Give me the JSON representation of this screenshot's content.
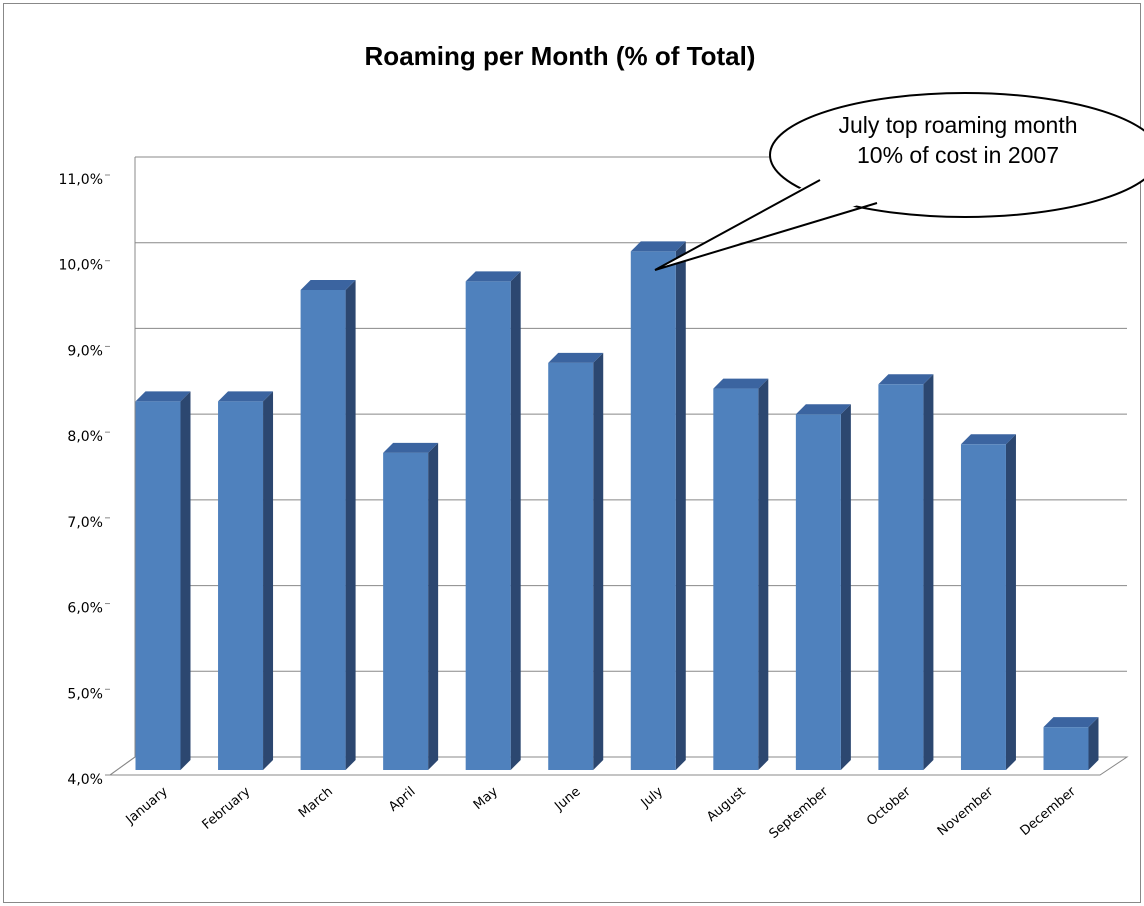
{
  "chart_data": {
    "type": "bar3d",
    "title": "Roaming per Month (% of Total)",
    "categories": [
      "January",
      "February",
      "March",
      "April",
      "May",
      "June",
      "July",
      "August",
      "September",
      "October",
      "November",
      "December"
    ],
    "values": [
      8.3,
      8.3,
      9.6,
      7.7,
      9.7,
      8.75,
      10.05,
      8.45,
      8.15,
      8.5,
      7.8,
      4.5
    ],
    "color": "#4f81bd",
    "ylim": [
      4,
      11
    ],
    "yticks": [
      {
        "value": 4,
        "label": "4,0%"
      },
      {
        "value": 5,
        "label": "5,0%"
      },
      {
        "value": 6,
        "label": "6,0%"
      },
      {
        "value": 7,
        "label": "7,0%"
      },
      {
        "value": 8,
        "label": "8,0%"
      },
      {
        "value": 9,
        "label": "9,0%"
      },
      {
        "value": 10,
        "label": "10,0%"
      },
      {
        "value": 11,
        "label": "11,0%"
      }
    ],
    "grid": true,
    "annotation": [
      "July top roaming month",
      "10% of cost in 2007"
    ]
  }
}
